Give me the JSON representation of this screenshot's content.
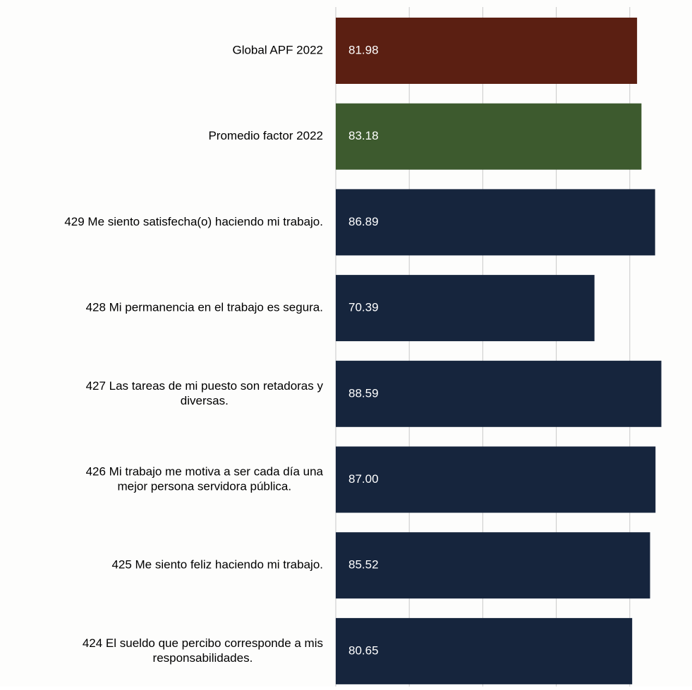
{
  "chart_data": {
    "type": "bar",
    "orientation": "horizontal",
    "categories": [
      "Global APF 2022",
      "Promedio factor 2022",
      "429 Me siento satisfecha(o) haciendo mi trabajo.",
      "428 Mi permanencia en el trabajo es segura.",
      "427 Las tareas de mi puesto son retadoras y diversas.",
      "426 Mi trabajo me motiva a ser cada día una mejor persona servidora pública.",
      "425 Me siento feliz haciendo mi trabajo.",
      "424 El sueldo que percibo corresponde a mis responsabilidades."
    ],
    "label_lines": [
      [
        "Global APF 2022"
      ],
      [
        "Promedio factor 2022"
      ],
      [
        "429 Me siento satisfecha(o) haciendo mi trabajo."
      ],
      [
        "428 Mi permanencia en el trabajo es segura."
      ],
      [
        "427 Las tareas de mi puesto son retadoras y",
        "diversas."
      ],
      [
        "426 Mi trabajo me motiva a ser cada día una",
        "mejor persona servidora pública."
      ],
      [
        "425 Me siento feliz haciendo mi trabajo."
      ],
      [
        "424 El sueldo que percibo corresponde a mis",
        "responsabilidades."
      ]
    ],
    "values": [
      81.98,
      83.18,
      86.89,
      70.39,
      88.59,
      87.0,
      85.52,
      80.65
    ],
    "value_labels": [
      "81.98",
      "83.18",
      "86.89",
      "70.39",
      "88.59",
      "87.00",
      "85.52",
      "80.65"
    ],
    "bar_colors": [
      "#5b1f12",
      "#3d5a2e",
      "#16253d",
      "#16253d",
      "#16253d",
      "#16253d",
      "#16253d",
      "#16253d"
    ],
    "label_color": "#000000",
    "value_label_color": "#ffffff",
    "gridline_color": "#c8c8c8",
    "xlim": [
      0,
      90
    ],
    "grid": true,
    "legend": "none",
    "title": "",
    "xlabel": "",
    "ylabel": ""
  }
}
